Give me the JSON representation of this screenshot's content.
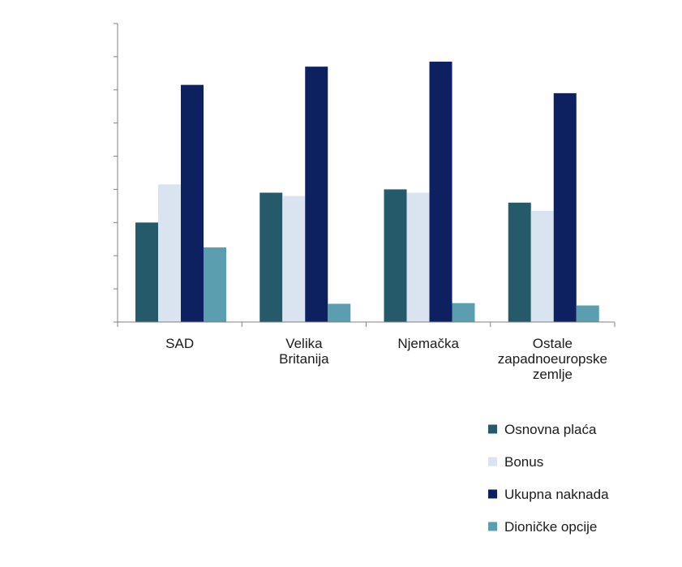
{
  "chart_data": {
    "type": "bar",
    "title": "",
    "xlabel": "",
    "ylabel": "",
    "ylim": [
      0,
      9
    ],
    "y_tick_count": 9,
    "y_tick_labels_visible": false,
    "grid": false,
    "legend_position": "bottom-right",
    "categories": [
      [
        "SAD"
      ],
      [
        "Velika",
        "Britanija"
      ],
      [
        "Njemačka"
      ],
      [
        "Ostale",
        "zapadnoeuropske",
        "zemlje"
      ]
    ],
    "series": [
      {
        "name": "Osnovna plaća",
        "color": "#245a6a",
        "values": [
          3.0,
          3.9,
          4.0,
          3.6
        ]
      },
      {
        "name": "Bonus",
        "color": "#dae3f0",
        "values": [
          4.15,
          3.8,
          3.9,
          3.35
        ]
      },
      {
        "name": "Ukupna naknada",
        "color": "#0d2160",
        "values": [
          7.15,
          7.7,
          7.85,
          6.9
        ]
      },
      {
        "name": "Dioničke opcije",
        "color": "#5b9eb0",
        "values": [
          2.25,
          0.55,
          0.57,
          0.5
        ]
      }
    ]
  }
}
